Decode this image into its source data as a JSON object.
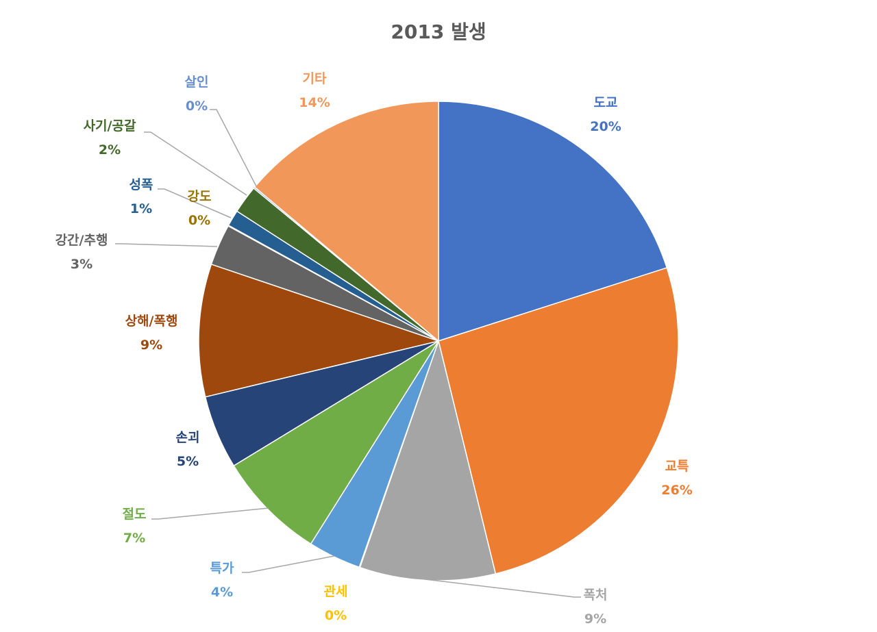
{
  "chart_data": {
    "type": "pie",
    "title": "2013 발생",
    "start_angle_deg": 0,
    "direction": "clockwise",
    "slices": [
      {
        "label": "도교",
        "percent_label": "20%",
        "value": 20.2,
        "color": "#4472C4"
      },
      {
        "label": "교특",
        "percent_label": "26%",
        "value": 26.3,
        "color": "#ED7D31"
      },
      {
        "label": "폭처",
        "percent_label": "9%",
        "value": 9.2,
        "color": "#A5A5A5"
      },
      {
        "label": "관세",
        "percent_label": "0%",
        "value": 0.05,
        "color": "#FFC000"
      },
      {
        "label": "특가",
        "percent_label": "4%",
        "value": 3.6,
        "color": "#5B9BD5"
      },
      {
        "label": "절도",
        "percent_label": "7%",
        "value": 7.4,
        "color": "#70AD47"
      },
      {
        "label": "손괴",
        "percent_label": "5%",
        "value": 5.0,
        "color": "#264478"
      },
      {
        "label": "상해/폭행",
        "percent_label": "9%",
        "value": 9.0,
        "color": "#9E480E"
      },
      {
        "label": "강간/추행",
        "percent_label": "3%",
        "value": 2.8,
        "color": "#636363"
      },
      {
        "label": "강도",
        "percent_label": "0%",
        "value": 0.05,
        "color": "#997300"
      },
      {
        "label": "성폭",
        "percent_label": "1%",
        "value": 1.1,
        "color": "#255E91"
      },
      {
        "label": "사기/공갈",
        "percent_label": "2%",
        "value": 1.9,
        "color": "#43682B"
      },
      {
        "label": "살인",
        "percent_label": "0%",
        "value": 0.1,
        "color": "#698ED0"
      },
      {
        "label": "기타",
        "percent_label": "14%",
        "value": 14.0,
        "color": "#F1975A"
      }
    ]
  }
}
